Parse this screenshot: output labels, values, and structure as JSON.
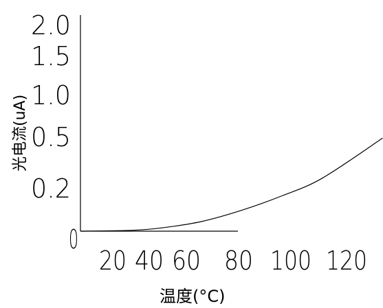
{
  "chart_data": {
    "type": "line",
    "title": "",
    "xlabel": "温度(°C)",
    "ylabel": "光电流(uA)",
    "x_ticks": [
      "0",
      "20",
      "40",
      "60",
      "80",
      "100",
      "120"
    ],
    "y_ticks": [
      "0.2",
      "0.5",
      "1.0",
      "1.5",
      "2.0"
    ],
    "xlim": [
      0,
      150
    ],
    "grid": false,
    "series": [
      {
        "x": [
          0,
          25,
          40,
          60,
          80,
          100,
          120,
          150
        ],
        "y": [
          0.0,
          0.005,
          0.02,
          0.06,
          0.13,
          0.22,
          0.33,
          0.58
        ]
      }
    ]
  }
}
